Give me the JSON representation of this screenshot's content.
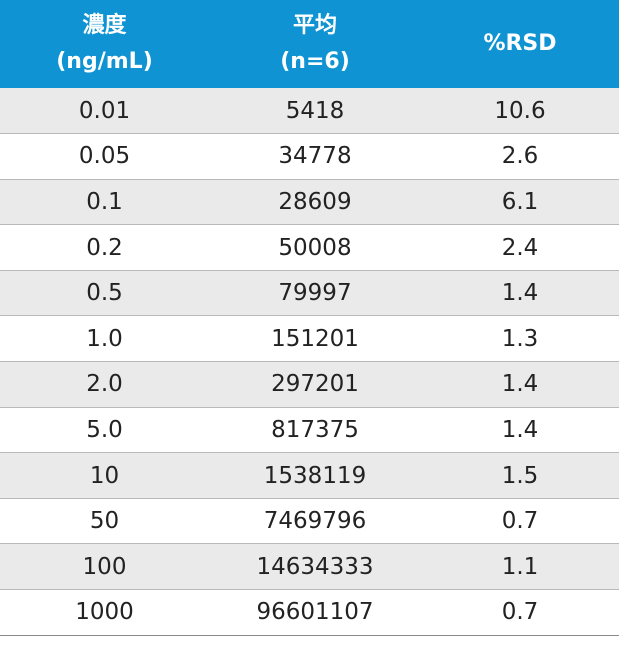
{
  "table": {
    "header": {
      "col1_line1": "濃度",
      "col1_line2": "(ng/mL)",
      "col2_line1": "平均",
      "col2_line2": "(n=6)",
      "col3": "%RSD"
    },
    "rows": [
      [
        "0.01",
        "5418",
        "10.6"
      ],
      [
        "0.05",
        "34778",
        "2.6"
      ],
      [
        "0.1",
        "28609",
        "6.1"
      ],
      [
        "0.2",
        "50008",
        "2.4"
      ],
      [
        "0.5",
        "79997",
        "1.4"
      ],
      [
        "1.0",
        "151201",
        "1.3"
      ],
      [
        "2.0",
        "297201",
        "1.4"
      ],
      [
        "5.0",
        "817375",
        "1.4"
      ],
      [
        "10",
        "1538119",
        "1.5"
      ],
      [
        "50",
        "7469796",
        "0.7"
      ],
      [
        "100",
        "14634333",
        "1.1"
      ],
      [
        "1000",
        "96601107",
        "0.7"
      ]
    ]
  },
  "colors": {
    "header_bg": "#0f93d2",
    "header_text": "#ffffff",
    "stripe_bg": "#eaeaeb"
  }
}
